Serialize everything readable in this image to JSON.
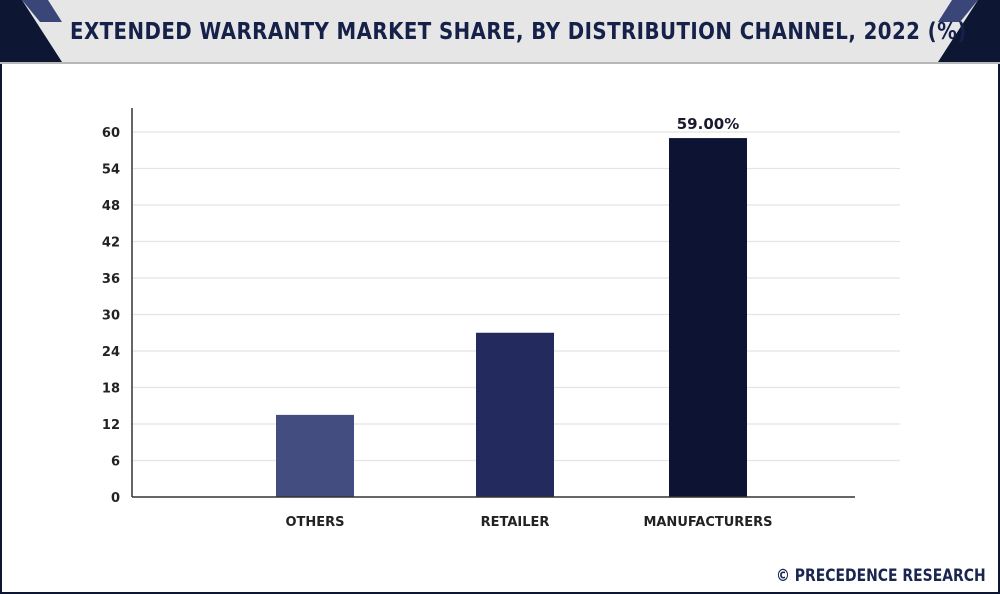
{
  "header": {
    "title": "EXTENDED WARRANTY MARKET SHARE, BY DISTRIBUTION CHANNEL, 2022 (%)"
  },
  "footer": {
    "credit": "© PRECEDENCE RESEARCH"
  },
  "colors": {
    "header_bg": "#e6e6e6",
    "corner_dark": "#0d1733",
    "corner_mid": "#23305e",
    "title": "#16214a",
    "gridline": "#e4e4e4",
    "axis": "#333333"
  },
  "chart_data": {
    "type": "bar",
    "categories": [
      "OTHERS",
      "RETAILER",
      "MANUFACTURERS"
    ],
    "values": [
      13.5,
      27,
      59
    ],
    "bar_colors": [
      "#434d80",
      "#222a5e",
      "#0d1433"
    ],
    "data_labels": [
      "",
      "",
      "59.00%"
    ],
    "ylim": [
      0,
      60
    ],
    "yticks": [
      0,
      6,
      12,
      18,
      24,
      30,
      36,
      42,
      48,
      54,
      60
    ],
    "grid": true,
    "title": "EXTENDED WARRANTY MARKET SHARE, BY DISTRIBUTION CHANNEL, 2022 (%)",
    "xlabel": "",
    "ylabel": ""
  }
}
